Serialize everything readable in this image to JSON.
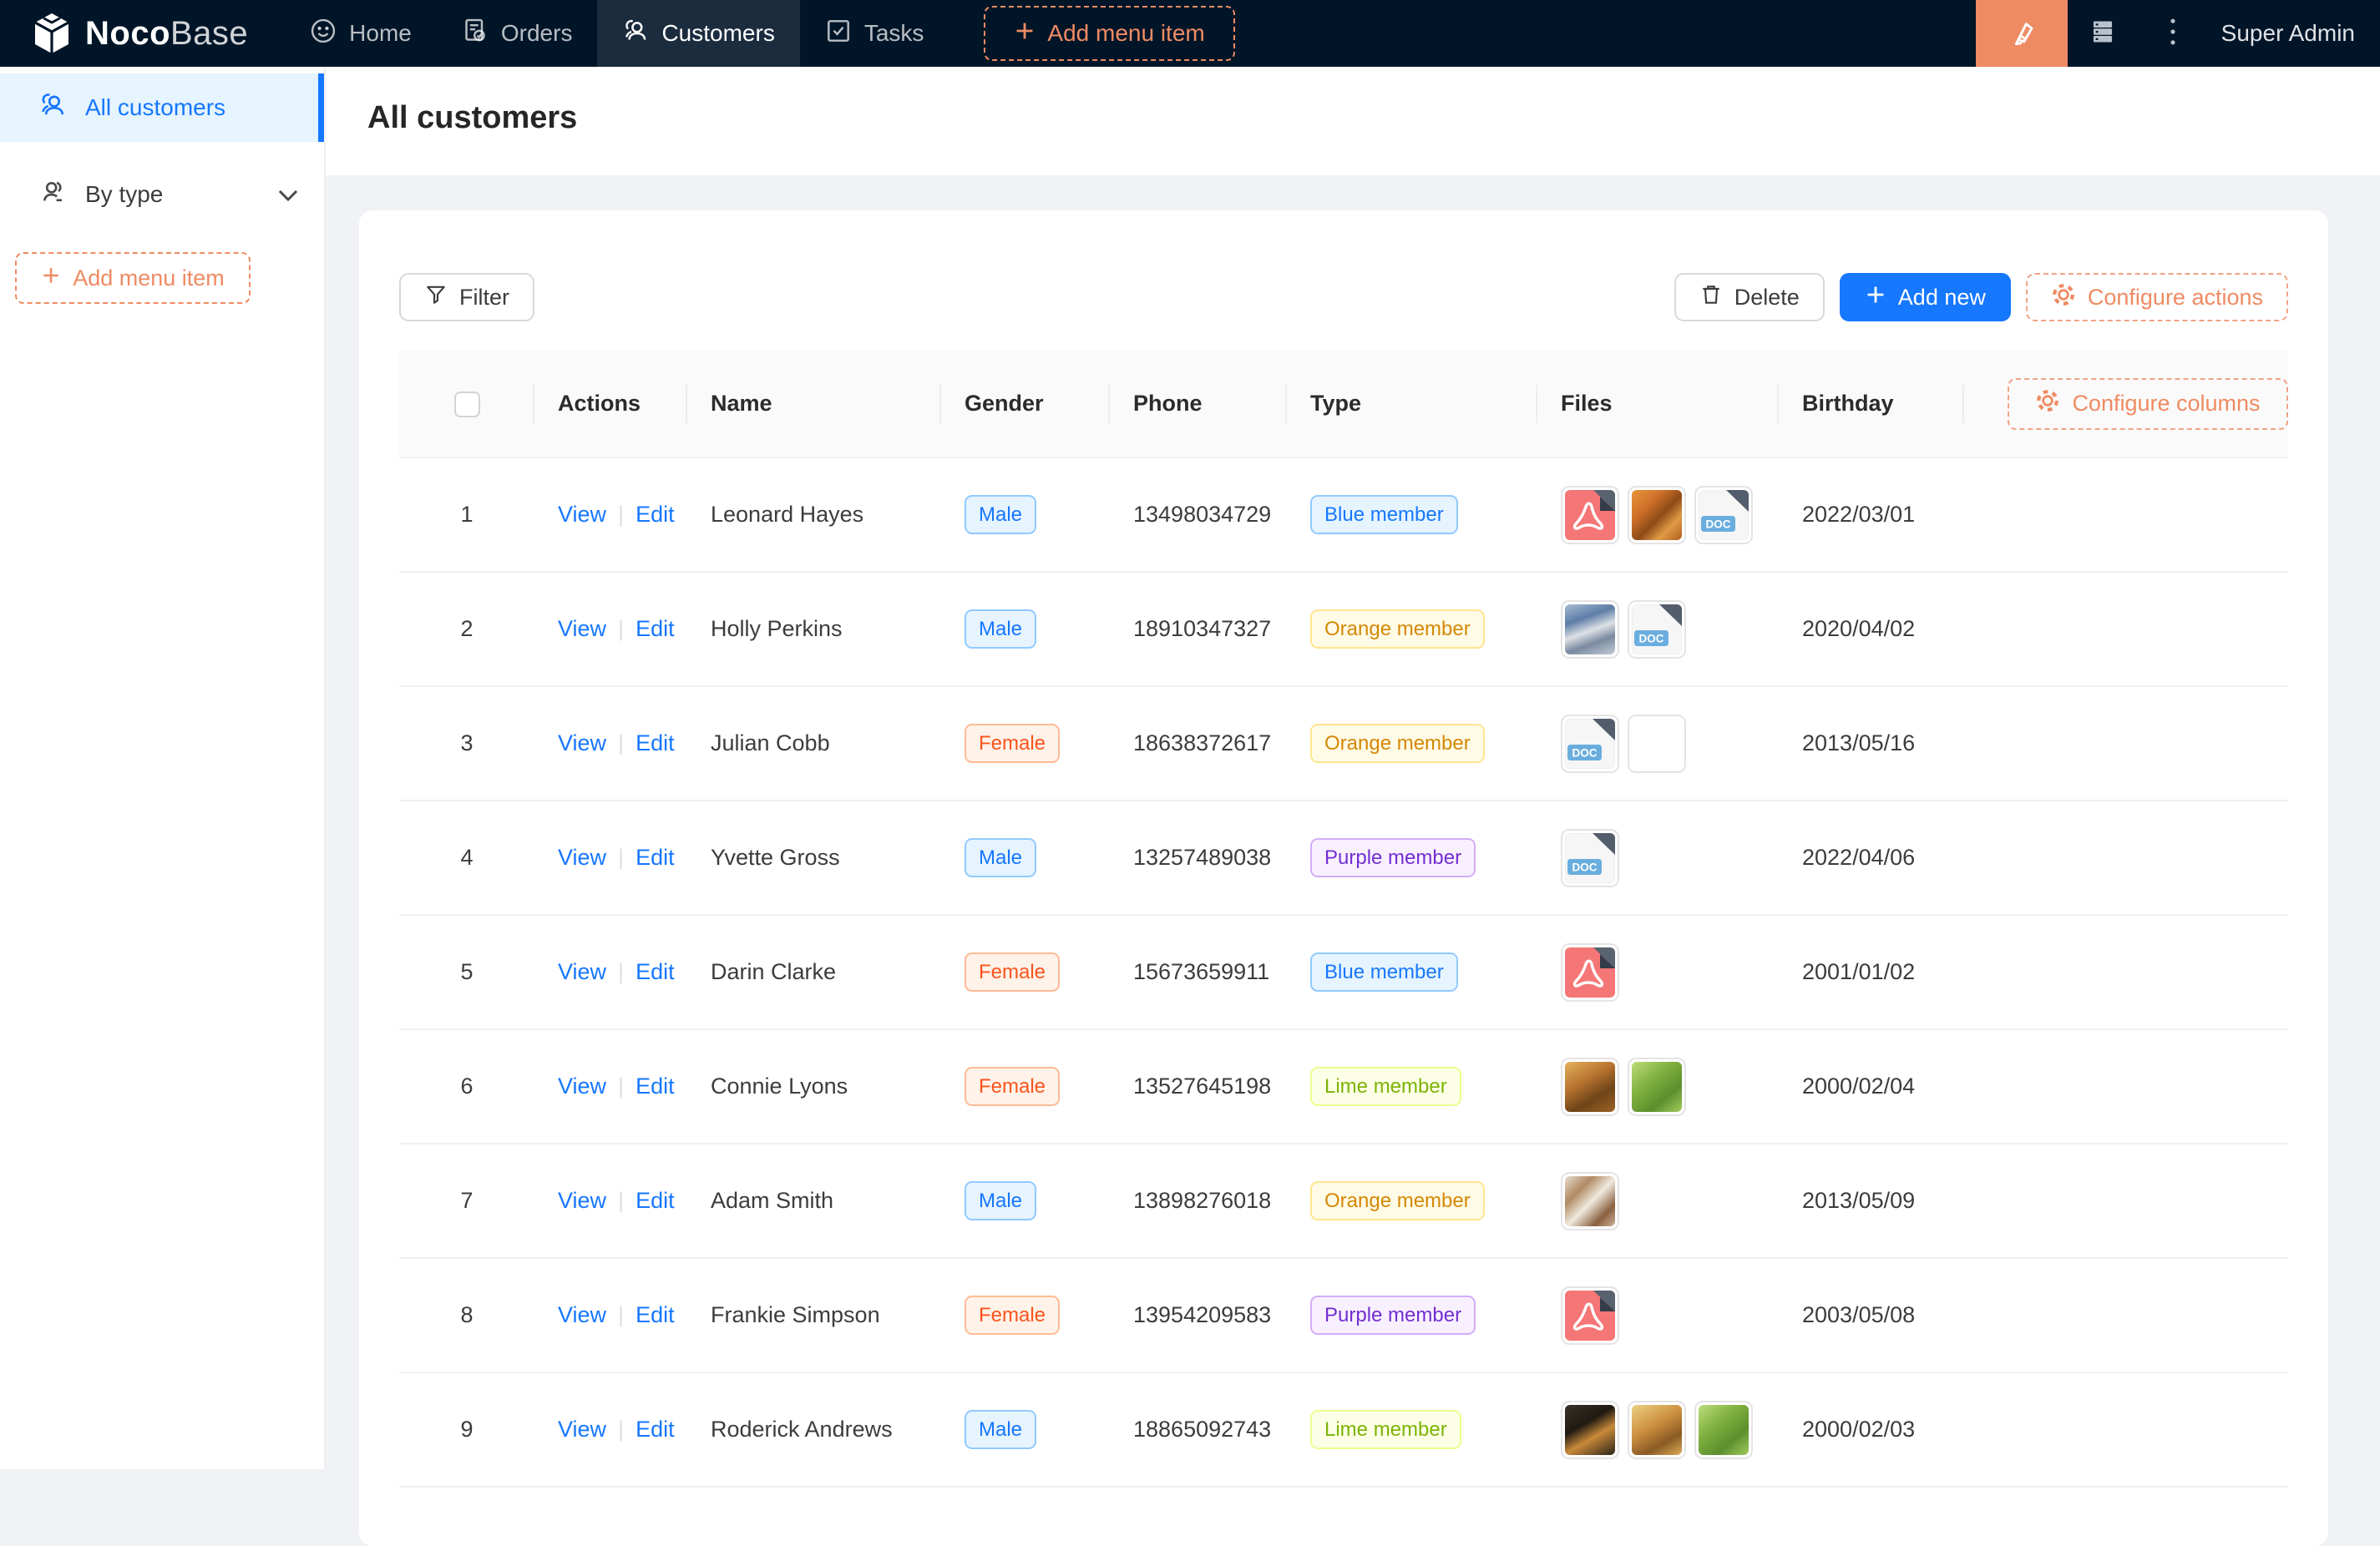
{
  "nav": {
    "brand": {
      "bold": "Noco",
      "light": "Base"
    },
    "items": [
      {
        "label": "Home",
        "icon": "smiley-icon",
        "active": false
      },
      {
        "label": "Orders",
        "icon": "receipt-icon",
        "active": false
      },
      {
        "label": "Customers",
        "icon": "people-icon",
        "active": true
      },
      {
        "label": "Tasks",
        "icon": "check-square-icon",
        "active": false
      }
    ],
    "add_menu_item_label": "Add menu item",
    "right_icons": [
      "ui-editor-pen-icon",
      "plugin-server-icon",
      "kebab-menu-icon"
    ],
    "user_label": "Super Admin"
  },
  "sidebar": {
    "items": [
      {
        "label": "All customers",
        "icon": "people-icon",
        "active": true
      },
      {
        "label": "By type",
        "icon": "people-type-icon",
        "active": false
      }
    ],
    "add_menu_item_label": "Add menu item"
  },
  "page": {
    "title": "All customers"
  },
  "toolbar": {
    "filter_label": "Filter",
    "delete_label": "Delete",
    "add_new_label": "Add new",
    "configure_actions_label": "Configure actions"
  },
  "table": {
    "columns": [
      "Actions",
      "Name",
      "Gender",
      "Phone",
      "Type",
      "Files",
      "Birthday"
    ],
    "configure_columns_label": "Configure columns",
    "action_labels": {
      "view": "View",
      "edit": "Edit"
    },
    "rows": [
      {
        "index": 1,
        "name": "Leonard Hayes",
        "gender": "Male",
        "phone": "13498034729",
        "type": "Blue member",
        "files": [
          "pdf",
          "img-orange-food",
          "doc"
        ],
        "birthday": "2022/03/01"
      },
      {
        "index": 2,
        "name": "Holly Perkins",
        "gender": "Male",
        "phone": "18910347327",
        "type": "Orange member",
        "files": [
          "img-outdoor",
          "doc"
        ],
        "birthday": "2020/04/02"
      },
      {
        "index": 3,
        "name": "Julian Cobb",
        "gender": "Female",
        "phone": "18638372617",
        "type": "Orange member",
        "files": [
          "doc",
          "img-platter"
        ],
        "birthday": "2013/05/16"
      },
      {
        "index": 4,
        "name": "Yvette Gross",
        "gender": "Male",
        "phone": "13257489038",
        "type": "Purple member",
        "files": [
          "doc"
        ],
        "birthday": "2022/04/06"
      },
      {
        "index": 5,
        "name": "Darin Clarke",
        "gender": "Female",
        "phone": "15673659911",
        "type": "Blue member",
        "files": [
          "pdf"
        ],
        "birthday": "2001/01/02"
      },
      {
        "index": 6,
        "name": "Connie Lyons",
        "gender": "Female",
        "phone": "13527645198",
        "type": "Lime member",
        "files": [
          "img-fruit-basket",
          "img-greens"
        ],
        "birthday": "2000/02/04"
      },
      {
        "index": 7,
        "name": "Adam Smith",
        "gender": "Male",
        "phone": "13898276018",
        "type": "Orange member",
        "files": [
          "img-food-grid"
        ],
        "birthday": "2013/05/09"
      },
      {
        "index": 8,
        "name": "Frankie Simpson",
        "gender": "Female",
        "phone": "13954209583",
        "type": "Purple member",
        "files": [
          "pdf"
        ],
        "birthday": "2003/05/08"
      },
      {
        "index": 9,
        "name": "Roderick Andrews",
        "gender": "Male",
        "phone": "18865092743",
        "type": "Lime member",
        "files": [
          "img-dark-fruit",
          "img-fruit",
          "img-greens"
        ],
        "birthday": "2000/02/03"
      }
    ]
  },
  "colors": {
    "nav_bg": "#011528",
    "nav_active_bg": "#1c2c3f",
    "accent_blue": "#1677ff",
    "accent_orange": "#ef8b63",
    "page_bg": "#f0f2f5",
    "tag_blue_text": "#1677ff",
    "tag_female_text": "#fa541c",
    "tag_gold_text": "#d48806",
    "tag_purple_text": "#722ed1",
    "tag_lime_text": "#7cb305"
  }
}
